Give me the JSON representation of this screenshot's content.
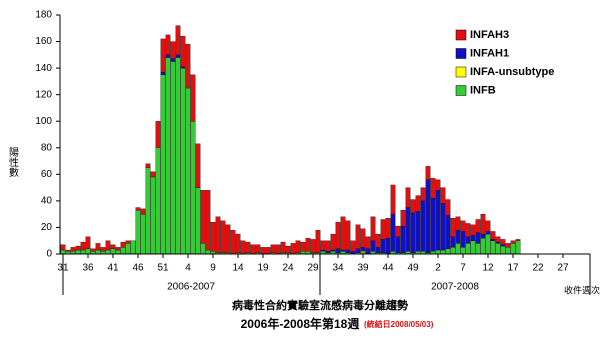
{
  "chart_data": {
    "type": "stacked_bar",
    "title": "病毒性合約實驗室流感病毒分離趨勢",
    "subtitle": "2006年-2008年第18週",
    "note": "(統結日2008/05/03)",
    "ylabel": "陽性數",
    "xlabel": "收件週次",
    "groups": [
      "2006-2007",
      "2007-2008"
    ],
    "ylim": [
      0,
      180
    ],
    "yticks": [
      0,
      20,
      40,
      60,
      80,
      100,
      120,
      140,
      160,
      180
    ],
    "categories": [
      "31",
      null,
      null,
      null,
      null,
      "36",
      null,
      null,
      null,
      null,
      "41",
      null,
      null,
      null,
      null,
      "46",
      null,
      null,
      null,
      null,
      "51",
      null,
      null,
      null,
      null,
      "4",
      null,
      null,
      null,
      null,
      "9",
      null,
      null,
      null,
      null,
      "14",
      null,
      null,
      null,
      null,
      "19",
      null,
      null,
      null,
      null,
      "24",
      null,
      null,
      null,
      null,
      "29",
      null,
      null,
      null,
      null,
      "34",
      null,
      null,
      null,
      null,
      "39",
      null,
      null,
      null,
      null,
      "44",
      null,
      null,
      null,
      null,
      "49",
      null,
      null,
      null,
      null,
      "2",
      null,
      null,
      null,
      null,
      "7",
      null,
      null,
      null,
      null,
      "12",
      null,
      null,
      null,
      null,
      "17",
      null,
      null,
      null,
      null,
      "22",
      null,
      null,
      null,
      null,
      "27",
      null,
      null,
      null
    ],
    "series": [
      {
        "name": "INFAH3",
        "color": "#e01010",
        "values": [
          4,
          1,
          3,
          3,
          6,
          9,
          2,
          5,
          3,
          7,
          3,
          2,
          4,
          2,
          0,
          2,
          4,
          3,
          4,
          20,
          25,
          15,
          13,
          22,
          23,
          33,
          35,
          33,
          40,
          45,
          22,
          27,
          24,
          21,
          18,
          14,
          10,
          8,
          7,
          6,
          5,
          5,
          6,
          7,
          8,
          5,
          8,
          9,
          7,
          10,
          10,
          17,
          7,
          8,
          12,
          20,
          25,
          22,
          8,
          18,
          14,
          9,
          18,
          10,
          15,
          15,
          22,
          8,
          12,
          15,
          10,
          12,
          10,
          10,
          15,
          8,
          12,
          12,
          14,
          10,
          8,
          10,
          8,
          10,
          15,
          8,
          6,
          4,
          4,
          3,
          2,
          1,
          0,
          0,
          0,
          0,
          0,
          0,
          0,
          0,
          0,
          0,
          0,
          0
        ]
      },
      {
        "name": "INFAH1",
        "color": "#1010c0",
        "values": [
          0,
          0,
          0,
          0,
          0,
          0,
          0,
          0,
          0,
          0,
          0,
          0,
          0,
          0,
          0,
          0,
          0,
          0,
          0,
          0,
          2,
          2,
          2,
          2,
          1,
          0,
          0,
          0,
          0,
          0,
          0,
          0,
          0,
          0,
          0,
          0,
          0,
          0,
          0,
          0,
          0,
          0,
          0,
          0,
          0,
          0,
          0,
          0,
          0,
          0,
          0,
          0,
          1,
          1,
          1,
          3,
          1,
          2,
          2,
          3,
          3,
          4,
          8,
          4,
          10,
          12,
          28,
          12,
          20,
          33,
          30,
          30,
          38,
          55,
          40,
          45,
          35,
          25,
          8,
          10,
          12,
          5,
          4,
          8,
          3,
          2,
          1,
          1,
          1,
          0,
          0,
          0,
          0,
          0,
          0,
          0,
          0,
          0,
          0,
          0,
          0,
          0,
          0,
          0
        ]
      },
      {
        "name": "INFA-unsubtype",
        "color": "#ffff00",
        "values": [
          0,
          0,
          0,
          0,
          0,
          0,
          0,
          0,
          0,
          0,
          0,
          0,
          0,
          0,
          0,
          0,
          0,
          0,
          0,
          0,
          0,
          0,
          0,
          0,
          0,
          0,
          0,
          0,
          0,
          0,
          0,
          0,
          0,
          0,
          0,
          0,
          0,
          0,
          0,
          0,
          0,
          0,
          0,
          0,
          0,
          0,
          0,
          0,
          0,
          0,
          0,
          0,
          0,
          0,
          0,
          0,
          0,
          0,
          0,
          0,
          1,
          0,
          0,
          0,
          0,
          0,
          0,
          0,
          0,
          0,
          0,
          0,
          0,
          0,
          0,
          0,
          0,
          0,
          0,
          0,
          0,
          0,
          0,
          0,
          0,
          0,
          0,
          0,
          0,
          0,
          0,
          0,
          0,
          0,
          0,
          0,
          0,
          0,
          0,
          0,
          0,
          0,
          0,
          0
        ]
      },
      {
        "name": "INFB",
        "color": "#33cc33",
        "values": [
          3,
          2,
          2,
          3,
          3,
          4,
          2,
          3,
          2,
          3,
          4,
          3,
          5,
          8,
          10,
          33,
          30,
          65,
          58,
          80,
          135,
          148,
          145,
          148,
          140,
          125,
          100,
          50,
          8,
          3,
          2,
          1,
          1,
          1,
          0,
          1,
          0,
          1,
          0,
          1,
          0,
          0,
          1,
          0,
          1,
          1,
          0,
          1,
          2,
          2,
          1,
          1,
          2,
          1,
          2,
          1,
          2,
          1,
          0,
          1,
          1,
          0,
          2,
          1,
          1,
          0,
          2,
          1,
          1,
          2,
          1,
          2,
          2,
          1,
          2,
          3,
          3,
          4,
          5,
          8,
          5,
          8,
          10,
          8,
          12,
          15,
          10,
          8,
          6,
          5,
          8,
          10,
          0,
          0,
          0,
          0,
          0,
          0,
          0,
          0,
          0,
          0,
          0,
          0
        ]
      }
    ]
  }
}
